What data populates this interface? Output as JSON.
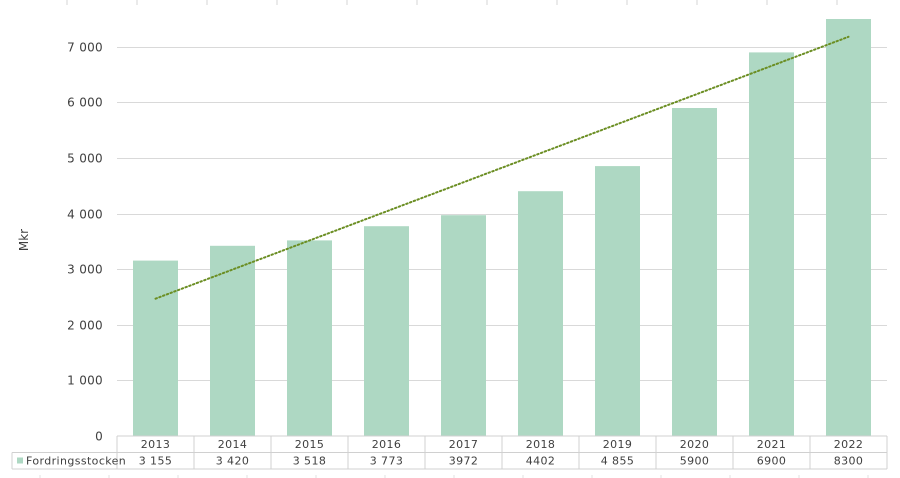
{
  "chart_data": {
    "type": "bar",
    "title": "",
    "xlabel": "",
    "ylabel": "Mkr",
    "ylim": [
      0,
      7500
    ],
    "yticks": [
      0,
      1000,
      2000,
      3000,
      4000,
      5000,
      6000,
      7000
    ],
    "ytick_labels": [
      "0",
      "1 000",
      "2 000",
      "3 000",
      "4 000",
      "5 000",
      "6 000",
      "7 000"
    ],
    "grid": true,
    "legend_position": "data-table",
    "categories": [
      "2013",
      "2014",
      "2015",
      "2016",
      "2017",
      "2018",
      "2019",
      "2020",
      "2021",
      "2022"
    ],
    "series": [
      {
        "name": "Fordringsstocken",
        "values": [
          3155,
          3420,
          3518,
          3773,
          3972,
          4402,
          4855,
          5900,
          6900,
          8300
        ],
        "value_labels": [
          "3 155",
          "3 420",
          "3 518",
          "3 773",
          "3972",
          "4402",
          "4 855",
          "5900",
          "6900",
          "8300"
        ],
        "color": "#aed8c3"
      }
    ],
    "trendline": {
      "type": "linear",
      "style": "dotted",
      "color": "#6b8e23",
      "start_value": 2470,
      "end_value": 7180
    },
    "annotations": [
      "2022 bar is clipped at the top of the plot area"
    ]
  },
  "colors": {
    "bar": "#aed8c3",
    "grid": "#d9d9d9",
    "trendline": "#6b8e23",
    "table_border": "#d0d0d0",
    "text": "#404040"
  }
}
